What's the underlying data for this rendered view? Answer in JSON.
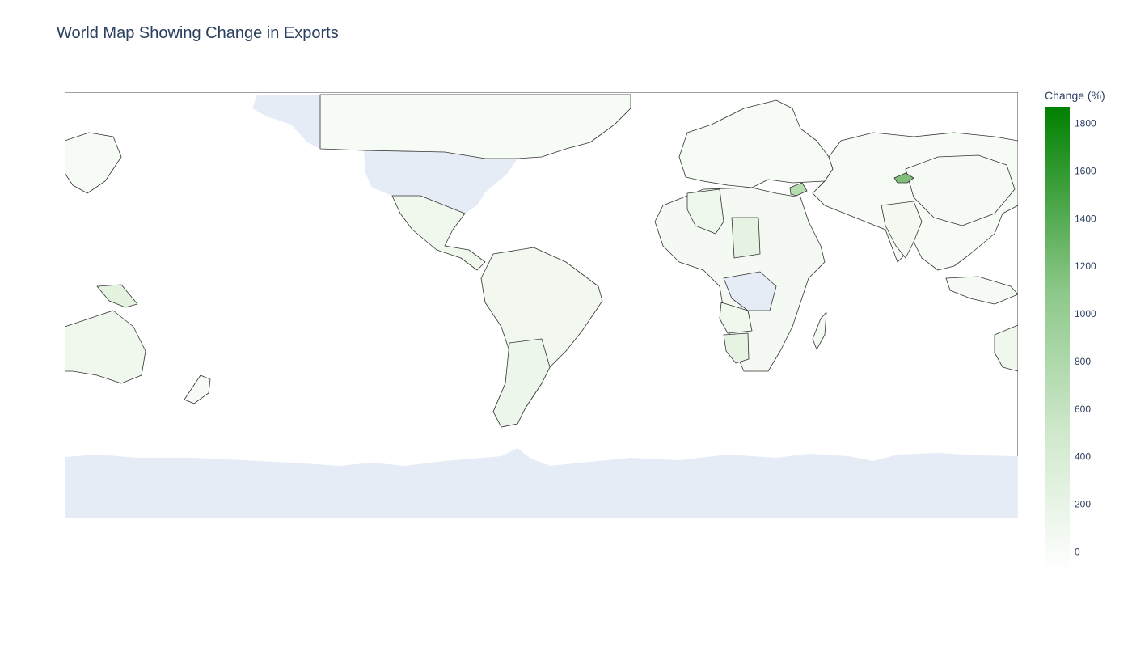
{
  "title": "World Map Showing Change in Exports",
  "colorbar": {
    "title": "Change (%)",
    "ticks": [
      {
        "label": "1800",
        "value": 1800
      },
      {
        "label": "1600",
        "value": 1600
      },
      {
        "label": "1400",
        "value": 1400
      },
      {
        "label": "1200",
        "value": 1200
      },
      {
        "label": "1000",
        "value": 1000
      },
      {
        "label": "800",
        "value": 800
      },
      {
        "label": "600",
        "value": 600
      },
      {
        "label": "400",
        "value": 400
      },
      {
        "label": "200",
        "value": 200
      },
      {
        "label": "0",
        "value": 0
      }
    ],
    "range": [
      -80,
      1870
    ],
    "color_low": "#ffffff",
    "color_high": "#008000"
  },
  "map": {
    "projection": "equirectangular",
    "land_no_data_color": "#e5ecf6",
    "border_color": "#444444",
    "regions": [
      {
        "name": "Tajikistan",
        "value": 1300
      },
      {
        "name": "Syria",
        "value": 650
      },
      {
        "name": "Papua New Guinea",
        "value": 150
      },
      {
        "name": "Algeria",
        "value": 60
      },
      {
        "name": "Chad",
        "value": 110
      },
      {
        "name": "Angola",
        "value": 50
      },
      {
        "name": "Namibia",
        "value": 140
      },
      {
        "name": "Argentina",
        "value": 70
      },
      {
        "name": "Brazil",
        "value": 40
      },
      {
        "name": "Canada",
        "value": 20
      },
      {
        "name": "Russia",
        "value": 15
      },
      {
        "name": "China",
        "value": 15
      },
      {
        "name": "Australia",
        "value": 40
      },
      {
        "name": "India",
        "value": 25
      },
      {
        "name": "Mexico",
        "value": 40
      }
    ]
  }
}
